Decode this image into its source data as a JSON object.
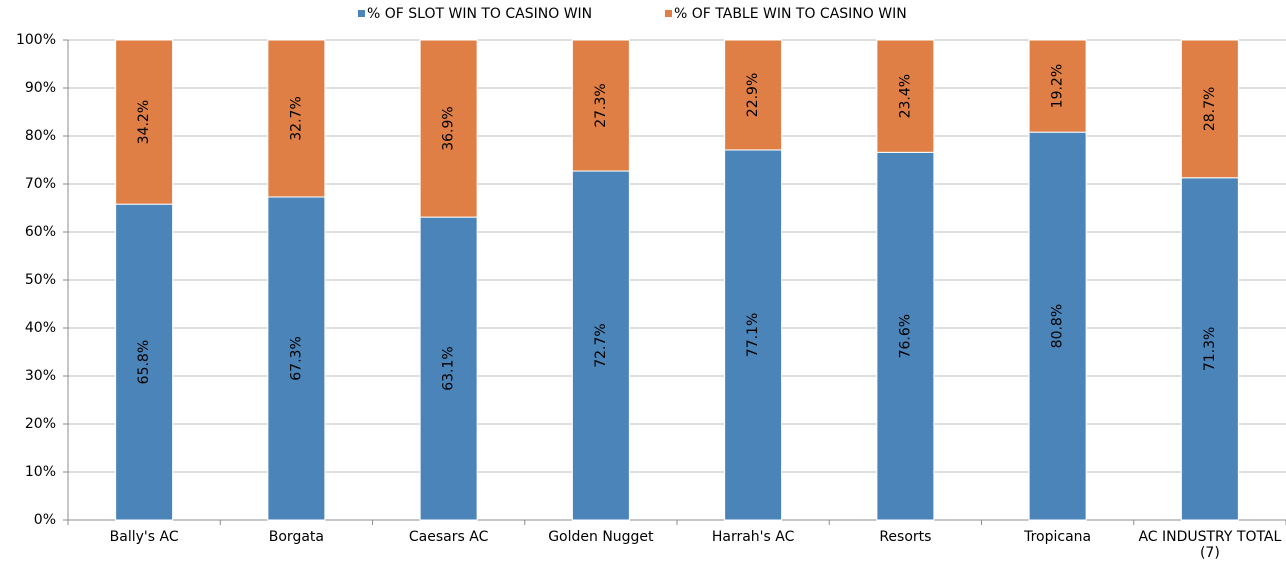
{
  "chart_data": {
    "type": "stacked_bar",
    "categories": [
      "Bally's AC",
      "Borgata",
      "Caesars AC",
      "Golden Nugget",
      "Harrah's AC",
      "Resorts",
      "Tropicana",
      "AC INDUSTRY TOTAL (7)"
    ],
    "series": [
      {
        "name": "% OF SLOT WIN TO CASINO WIN",
        "color": "#4a84b8",
        "values": [
          65.8,
          67.3,
          63.1,
          72.7,
          77.1,
          76.6,
          80.8,
          71.3
        ],
        "value_labels": [
          "65.8%",
          "67.3%",
          "63.1%",
          "72.7%",
          "77.1%",
          "76.6%",
          "80.8%",
          "71.3%"
        ]
      },
      {
        "name": "% OF TABLE WIN TO CASINO WIN",
        "color": "#df7f45",
        "values": [
          34.2,
          32.7,
          36.9,
          27.3,
          22.9,
          23.4,
          19.2,
          28.7
        ],
        "value_labels": [
          "34.2%",
          "32.7%",
          "36.9%",
          "27.3%",
          "22.9%",
          "23.4%",
          "19.2%",
          "28.7%"
        ]
      }
    ],
    "ylim": [
      0,
      100
    ],
    "yticks": [
      {
        "value": 0,
        "label": "0%"
      },
      {
        "value": 10,
        "label": "10%"
      },
      {
        "value": 20,
        "label": "20%"
      },
      {
        "value": 30,
        "label": "30%"
      },
      {
        "value": 40,
        "label": "40%"
      },
      {
        "value": 50,
        "label": "50%"
      },
      {
        "value": 60,
        "label": "60%"
      },
      {
        "value": 70,
        "label": "70%"
      },
      {
        "value": 80,
        "label": "80%"
      },
      {
        "value": 90,
        "label": "90%"
      },
      {
        "value": 100,
        "label": "100%"
      }
    ],
    "grid": true,
    "legend": "top"
  }
}
